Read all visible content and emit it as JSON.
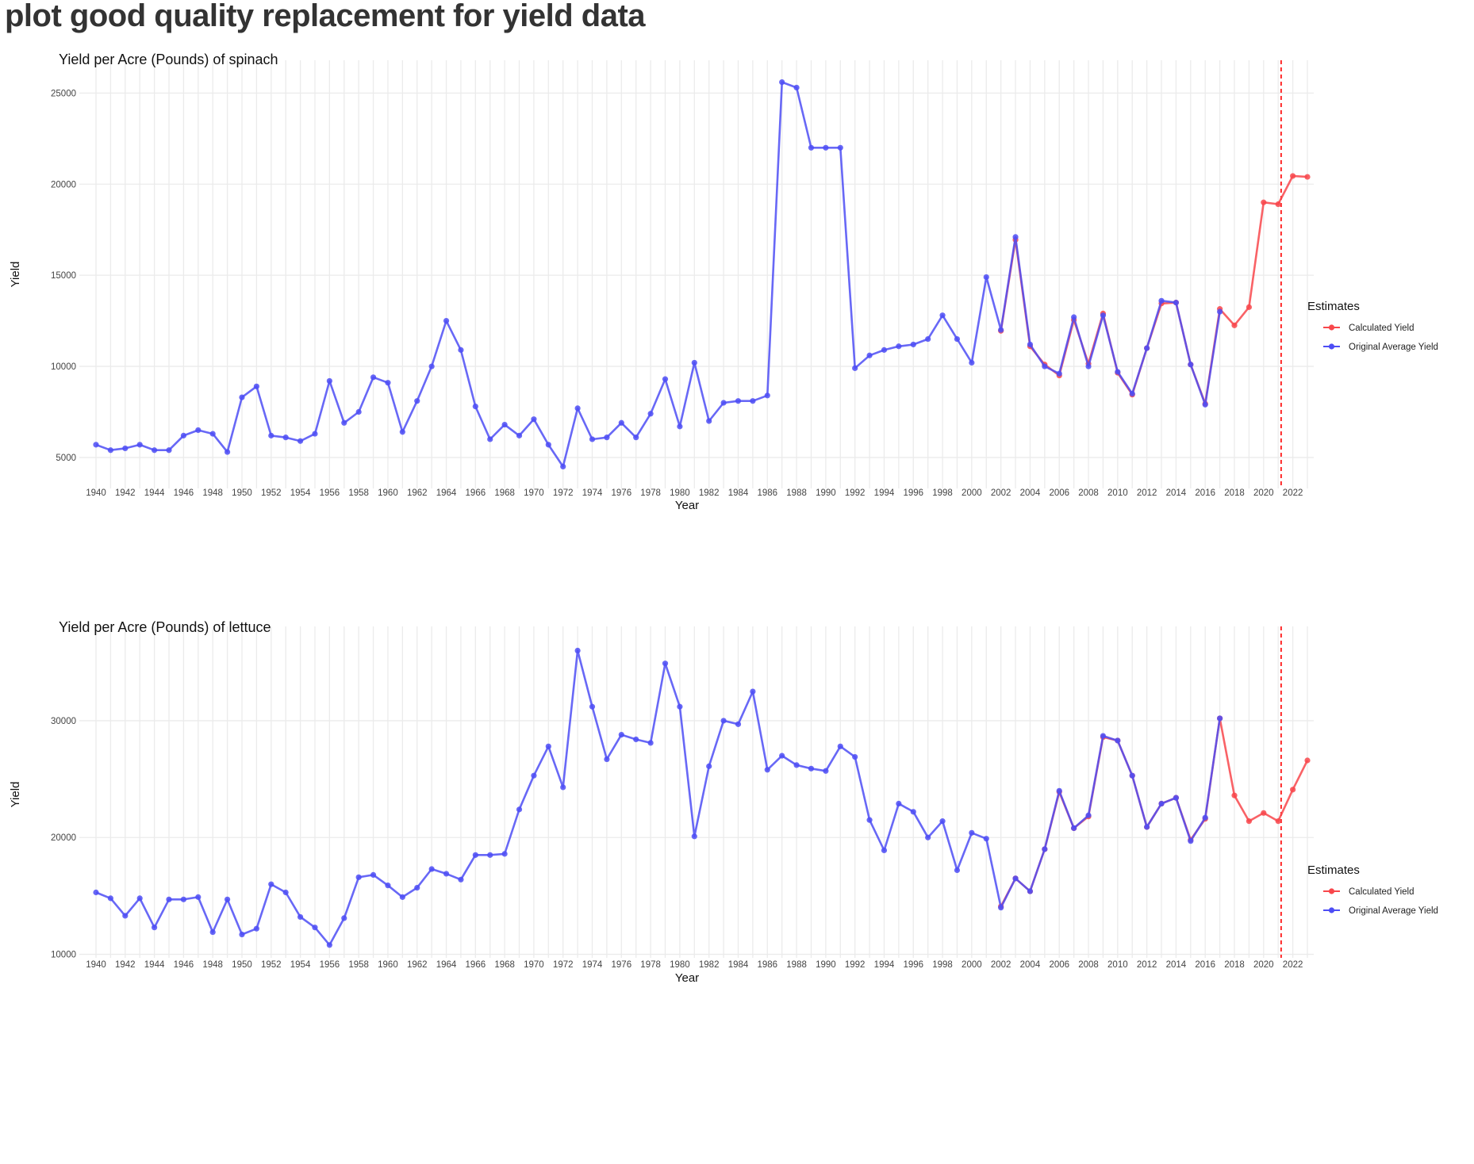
{
  "page": {
    "title": "plot good quality replacement for yield data"
  },
  "colors": {
    "calculated": "#f8474b",
    "original": "#4d4df5",
    "cutoff": "#ff2a2a",
    "grid": "#ebebeb"
  },
  "chart_data": [
    {
      "type": "line",
      "title": "Yield per Acre (Pounds) of spinach",
      "xlabel": "Year",
      "ylabel": "Yield",
      "xlim": [
        1940,
        2023
      ],
      "ylim": [
        3300,
        26800
      ],
      "yticks": [
        5000,
        10000,
        15000,
        20000,
        25000
      ],
      "xticks": [
        1940,
        1942,
        1944,
        1946,
        1948,
        1950,
        1952,
        1954,
        1956,
        1958,
        1960,
        1962,
        1964,
        1966,
        1968,
        1970,
        1972,
        1974,
        1976,
        1978,
        1980,
        1982,
        1984,
        1986,
        1988,
        1990,
        1992,
        1994,
        1996,
        1998,
        2000,
        2002,
        2004,
        2006,
        2008,
        2010,
        2012,
        2014,
        2016,
        2018,
        2020,
        2022
      ],
      "vline_x": 2021.2,
      "grid": true,
      "legend": {
        "title": "Estimates",
        "position": "right",
        "entries": [
          "Calculated Yield",
          "Original Average Yield"
        ]
      },
      "series": [
        {
          "name": "Calculated Yield",
          "color": "#f8474b",
          "x": [
            2002,
            2003,
            2004,
            2005,
            2006,
            2007,
            2008,
            2009,
            2010,
            2011,
            2012,
            2013,
            2014,
            2015,
            2016,
            2017,
            2018,
            2019,
            2020,
            2021,
            2022,
            2023
          ],
          "y": [
            11950,
            16950,
            11100,
            10100,
            9500,
            12550,
            10150,
            12900,
            9650,
            8450,
            11000,
            13450,
            13500,
            10100,
            7950,
            13150,
            12250,
            13250,
            19000,
            18900,
            20450,
            20400
          ]
        },
        {
          "name": "Original Average Yield",
          "color": "#4d4df5",
          "x": [
            1940,
            1941,
            1942,
            1943,
            1944,
            1945,
            1946,
            1947,
            1948,
            1949,
            1950,
            1951,
            1952,
            1953,
            1954,
            1955,
            1956,
            1957,
            1958,
            1959,
            1960,
            1961,
            1962,
            1963,
            1964,
            1965,
            1966,
            1967,
            1968,
            1969,
            1970,
            1971,
            1972,
            1973,
            1974,
            1975,
            1976,
            1977,
            1978,
            1979,
            1980,
            1981,
            1982,
            1983,
            1984,
            1985,
            1986,
            1987,
            1988,
            1989,
            1990,
            1991,
            1992,
            1993,
            1994,
            1995,
            1996,
            1997,
            1998,
            1999,
            2000,
            2001,
            2002,
            2003,
            2004,
            2005,
            2006,
            2007,
            2008,
            2009,
            2010,
            2011,
            2012,
            2013,
            2014,
            2015,
            2016,
            2017
          ],
          "y": [
            5700,
            5400,
            5500,
            5700,
            5400,
            5400,
            6200,
            6500,
            6300,
            5300,
            8300,
            8900,
            6200,
            6100,
            5900,
            6300,
            9200,
            6900,
            7500,
            9400,
            9100,
            6400,
            8100,
            10000,
            12500,
            10900,
            7800,
            6000,
            6800,
            6200,
            7100,
            5700,
            4500,
            7700,
            6000,
            6100,
            6900,
            6100,
            7400,
            9300,
            6700,
            10200,
            7000,
            8000,
            8100,
            8100,
            8400,
            25600,
            25300,
            22000,
            22000,
            22000,
            9900,
            10600,
            10900,
            11100,
            11200,
            11500,
            12800,
            11500,
            10200,
            14900,
            12000,
            17100,
            11200,
            10000,
            9600,
            12700,
            10000,
            12800,
            9700,
            8500,
            11000,
            13600,
            13500,
            10100,
            7900,
            13000
          ]
        }
      ]
    },
    {
      "type": "line",
      "title": "Yield per Acre (Pounds) of lettuce",
      "xlabel": "Year",
      "ylabel": "Yield",
      "xlim": [
        1940,
        2023
      ],
      "ylim": [
        9700,
        37800
      ],
      "yticks": [
        10000,
        20000,
        30000
      ],
      "xticks": [
        1940,
        1942,
        1944,
        1946,
        1948,
        1950,
        1952,
        1954,
        1956,
        1958,
        1960,
        1962,
        1964,
        1966,
        1968,
        1970,
        1972,
        1974,
        1976,
        1978,
        1980,
        1982,
        1984,
        1986,
        1988,
        1990,
        1992,
        1994,
        1996,
        1998,
        2000,
        2002,
        2004,
        2006,
        2008,
        2010,
        2012,
        2014,
        2016,
        2018,
        2020,
        2022
      ],
      "vline_x": 2021.2,
      "grid": true,
      "legend": {
        "title": "Estimates",
        "position": "right",
        "entries": [
          "Calculated Yield",
          "Original Average Yield"
        ]
      },
      "series": [
        {
          "name": "Calculated Yield",
          "color": "#f8474b",
          "x": [
            2002,
            2003,
            2004,
            2005,
            2006,
            2007,
            2008,
            2009,
            2010,
            2011,
            2012,
            2013,
            2014,
            2015,
            2016,
            2017,
            2018,
            2019,
            2020,
            2021,
            2022,
            2023
          ],
          "y": [
            14100,
            16500,
            15400,
            19000,
            23900,
            20800,
            21800,
            28600,
            28300,
            25300,
            20900,
            22900,
            23400,
            19800,
            21600,
            30200,
            23600,
            21400,
            22100,
            21400,
            24100,
            26600
          ]
        },
        {
          "name": "Original Average Yield",
          "color": "#4d4df5",
          "x": [
            1940,
            1941,
            1942,
            1943,
            1944,
            1945,
            1946,
            1947,
            1948,
            1949,
            1950,
            1951,
            1952,
            1953,
            1954,
            1955,
            1956,
            1957,
            1958,
            1959,
            1960,
            1961,
            1962,
            1963,
            1964,
            1965,
            1966,
            1967,
            1968,
            1969,
            1970,
            1971,
            1972,
            1973,
            1974,
            1975,
            1976,
            1977,
            1978,
            1979,
            1980,
            1981,
            1982,
            1983,
            1984,
            1985,
            1986,
            1987,
            1988,
            1989,
            1990,
            1991,
            1992,
            1993,
            1994,
            1995,
            1996,
            1997,
            1998,
            1999,
            2000,
            2001,
            2002,
            2003,
            2004,
            2005,
            2006,
            2007,
            2008,
            2009,
            2010,
            2011,
            2012,
            2013,
            2014,
            2015,
            2016,
            2017
          ],
          "y": [
            15300,
            14800,
            13300,
            14800,
            12300,
            14700,
            14700,
            14900,
            11900,
            14700,
            11700,
            12200,
            16000,
            15300,
            13200,
            12300,
            10800,
            13100,
            16600,
            16800,
            15900,
            14900,
            15700,
            17300,
            16900,
            16400,
            18500,
            18500,
            18600,
            22400,
            25300,
            27800,
            24300,
            36000,
            31200,
            26700,
            28800,
            28400,
            28100,
            34900,
            31200,
            20100,
            26100,
            30000,
            29700,
            32500,
            25800,
            27000,
            26200,
            25900,
            25700,
            27800,
            26900,
            21500,
            18900,
            22900,
            22200,
            20000,
            21400,
            17200,
            20400,
            19900,
            14000,
            16500,
            15400,
            19000,
            24000,
            20800,
            21900,
            28700,
            28300,
            25300,
            20900,
            22900,
            23400,
            19700,
            21700,
            30200
          ]
        }
      ]
    }
  ]
}
